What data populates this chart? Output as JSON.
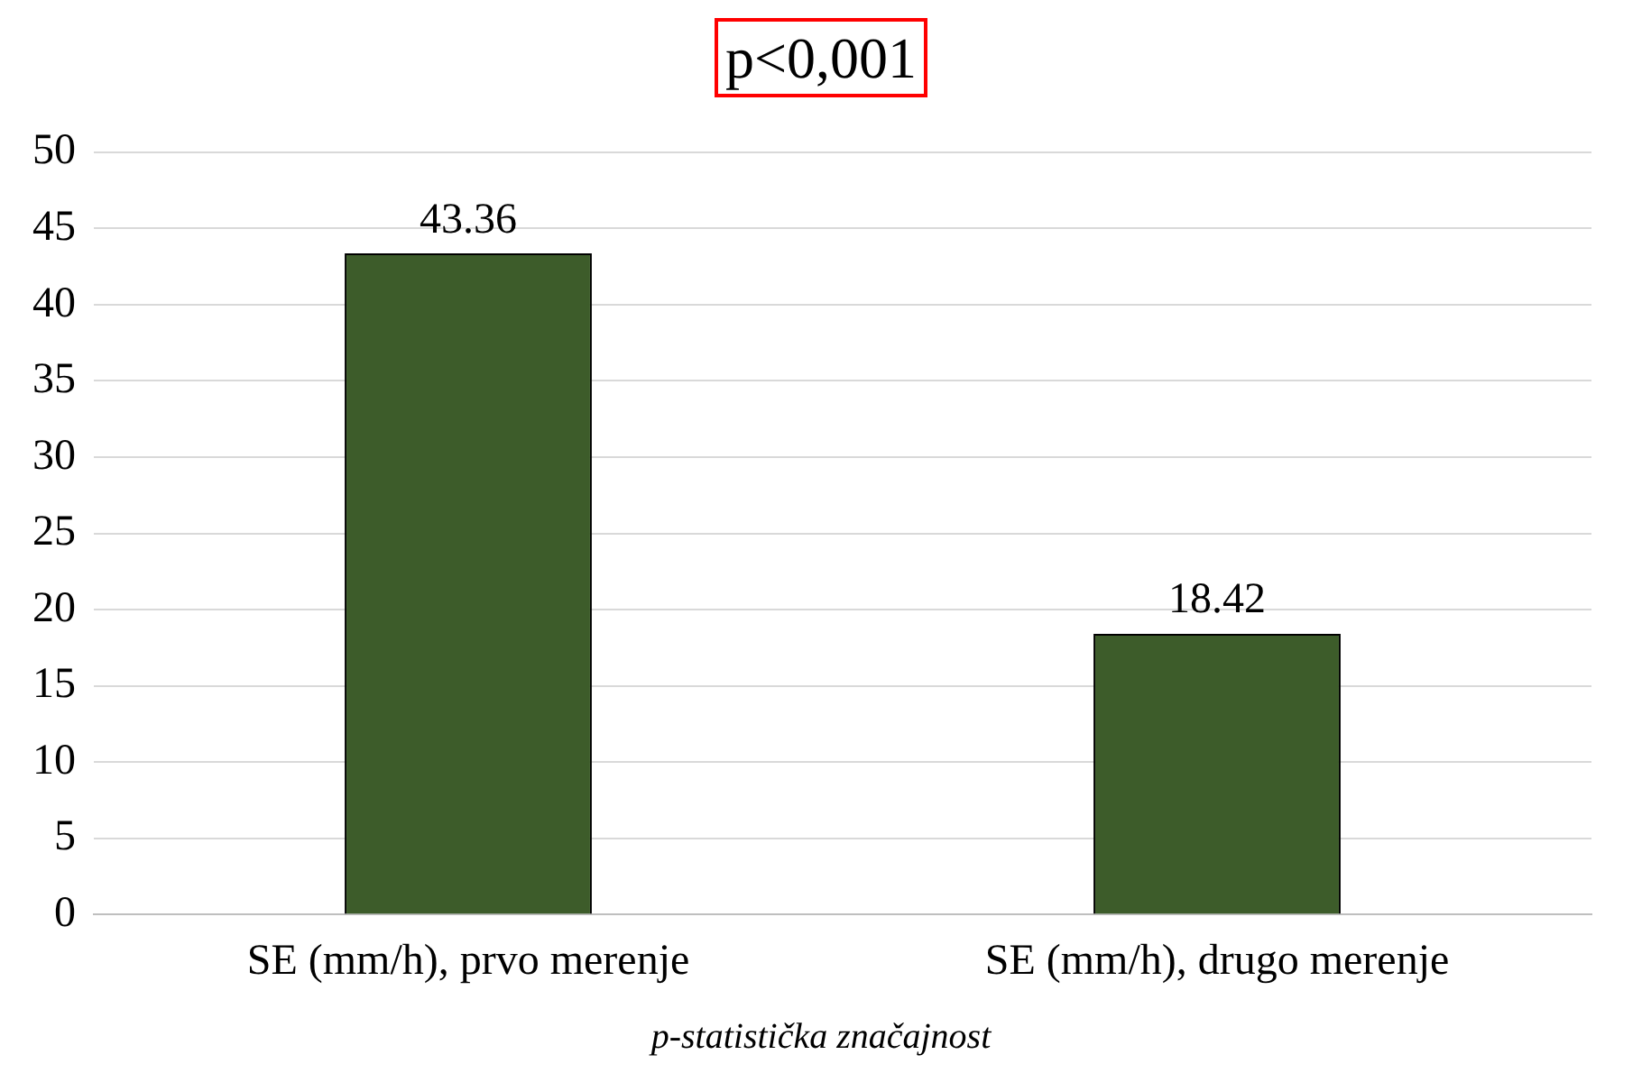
{
  "chart_data": {
    "type": "bar",
    "title": "p<0,001",
    "categories": [
      "SE (mm/h), prvo merenje",
      "SE (mm/h), drugo merenje"
    ],
    "values": [
      43.36,
      18.42
    ],
    "color": "#3d5c2a",
    "ylim": [
      0,
      50
    ],
    "yticks": [
      0,
      5,
      10,
      15,
      20,
      25,
      30,
      35,
      40,
      45,
      50
    ],
    "grid": "y",
    "data_labels": true,
    "annotations": [
      "p-statistička značajnost"
    ]
  }
}
